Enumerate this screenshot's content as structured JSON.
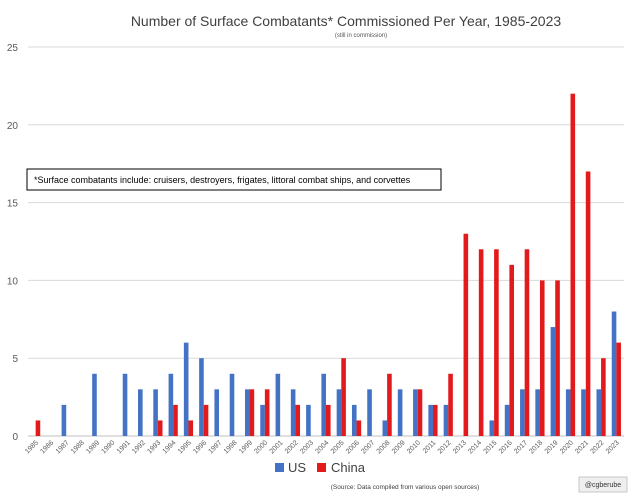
{
  "chart_data": {
    "type": "bar",
    "title": "Number of Surface Combatants* Commissioned Per Year, 1985-2023",
    "subtitle": "(still in commission)",
    "note": "*Surface combatants include: cruisers, destroyers, frigates, littoral combat ships, and corvettes",
    "source": "(Source: Data compiled from various open sources)",
    "handle": "@cgberube",
    "ylim": [
      0,
      25
    ],
    "yticks": [
      0,
      5,
      10,
      15,
      20,
      25
    ],
    "grid": true,
    "legend_position": "bottom",
    "categories": [
      "1985",
      "1986",
      "1987",
      "1988",
      "1989",
      "1990",
      "1991",
      "1992",
      "1993",
      "1994",
      "1995",
      "1996",
      "1997",
      "1998",
      "1999",
      "2000",
      "2001",
      "2002",
      "2003",
      "2004",
      "2005",
      "2006",
      "2007",
      "2008",
      "2009",
      "2010",
      "2011",
      "2012",
      "2013",
      "2014",
      "2015",
      "2016",
      "2017",
      "2018",
      "2019",
      "2020",
      "2021",
      "2022",
      "2023"
    ],
    "series": [
      {
        "name": "US",
        "color": "#4472c4",
        "values": [
          0,
          0,
          2,
          0,
          4,
          0,
          4,
          3,
          3,
          4,
          6,
          5,
          3,
          4,
          3,
          2,
          4,
          3,
          2,
          4,
          3,
          2,
          3,
          1,
          3,
          3,
          2,
          2,
          0,
          0,
          1,
          2,
          3,
          3,
          7,
          3,
          3,
          3,
          8
        ]
      },
      {
        "name": "China",
        "color": "#e31a1c",
        "values": [
          1,
          0,
          0,
          0,
          0,
          0,
          0,
          0,
          1,
          2,
          1,
          2,
          0,
          0,
          3,
          3,
          0,
          2,
          0,
          2,
          5,
          1,
          0,
          4,
          0,
          3,
          2,
          4,
          13,
          12,
          12,
          11,
          12,
          10,
          10,
          22,
          17,
          5,
          6
        ]
      }
    ]
  }
}
